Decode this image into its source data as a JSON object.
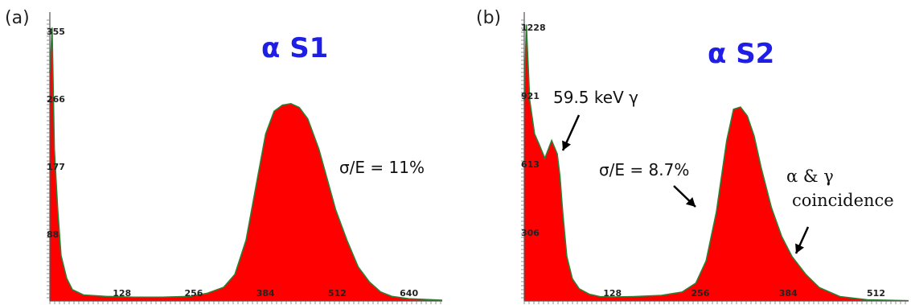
{
  "panels": [
    {
      "label": "(a)",
      "title": "α S1",
      "yticks": [
        "355",
        "266",
        "177",
        "88"
      ],
      "xticks": [
        "128",
        "256",
        "384",
        "512",
        "640"
      ],
      "annotations": [
        "σ/E = 11%"
      ]
    },
    {
      "label": "(b)",
      "title": "α S2",
      "yticks": [
        "1228",
        "921",
        "613",
        "306"
      ],
      "xticks": [
        "128",
        "256",
        "384",
        "512"
      ],
      "annotations": [
        "59.5 keV γ",
        "σ/E = 8.7%",
        "α & γ",
        "coincidence"
      ]
    }
  ],
  "colors": {
    "fill": "#ff0000",
    "edge": "#2e7d32",
    "title": "#1e1ee6"
  },
  "chart_data": [
    {
      "type": "area",
      "title": "α S1",
      "xticks": [
        128,
        256,
        384,
        512,
        640
      ],
      "yticks": [
        88,
        177,
        266,
        355
      ],
      "xlim": [
        0,
        700
      ],
      "ylim": [
        0,
        370
      ],
      "x": [
        0,
        4,
        8,
        14,
        20,
        30,
        40,
        60,
        100,
        150,
        200,
        250,
        280,
        310,
        330,
        350,
        370,
        385,
        400,
        415,
        430,
        445,
        460,
        470,
        480,
        495,
        510,
        530,
        550,
        570,
        590,
        610,
        640,
        700
      ],
      "y": [
        300,
        360,
        200,
        120,
        60,
        30,
        15,
        8,
        6,
        5,
        5,
        6,
        10,
        18,
        35,
        80,
        160,
        220,
        250,
        258,
        260,
        255,
        240,
        220,
        200,
        160,
        120,
        80,
        45,
        25,
        12,
        6,
        3,
        1
      ],
      "annotations": [
        "σ/E = 11%"
      ]
    },
    {
      "type": "area",
      "title": "α S2",
      "xticks": [
        128,
        256,
        384,
        512
      ],
      "yticks": [
        306,
        613,
        921,
        1228
      ],
      "xlim": [
        0,
        560
      ],
      "ylim": [
        0,
        1260
      ],
      "x": [
        0,
        3,
        8,
        15,
        22,
        30,
        40,
        48,
        52,
        56,
        62,
        70,
        80,
        95,
        110,
        130,
        160,
        200,
        230,
        250,
        265,
        280,
        295,
        305,
        315,
        325,
        335,
        345,
        360,
        375,
        390,
        410,
        430,
        460,
        500,
        560
      ],
      "y": [
        900,
        1240,
        900,
        750,
        700,
        640,
        720,
        660,
        560,
        400,
        200,
        100,
        55,
        30,
        20,
        18,
        20,
        25,
        40,
        80,
        180,
        400,
        720,
        860,
        870,
        830,
        740,
        600,
        420,
        290,
        200,
        120,
        60,
        20,
        5,
        1
      ],
      "annotations": [
        "59.5 keV γ",
        "σ/E = 8.7%",
        "α & γ coincidence"
      ]
    }
  ]
}
